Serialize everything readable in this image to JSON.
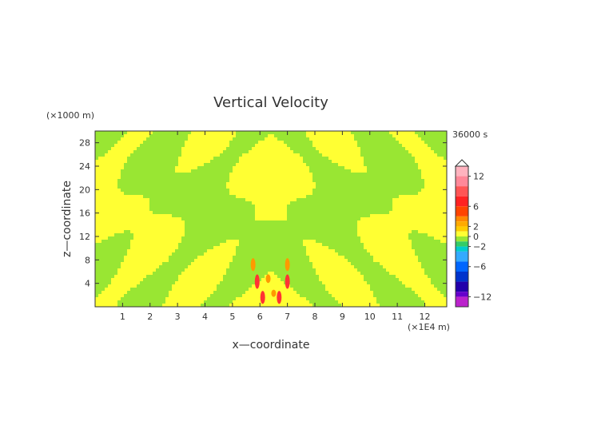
{
  "chart_data": {
    "type": "heatmap",
    "title": "Vertical Velocity",
    "xlabel": "x—coordinate",
    "ylabel": "z—coordinate",
    "x_unit": "(×1E4 m)",
    "y_unit": "(×1000 m)",
    "time_label": "36000 s",
    "x_range": [
      0,
      12.8
    ],
    "y_range": [
      0,
      30
    ],
    "x_ticks": [
      "1",
      "2",
      "3",
      "4",
      "5",
      "6",
      "7",
      "8",
      "9",
      "10",
      "11",
      "12"
    ],
    "y_ticks": [
      "4",
      "8",
      "12",
      "16",
      "20",
      "24",
      "28"
    ],
    "colorbar": {
      "labels": [
        "12",
        "6",
        "2",
        "0",
        "−2",
        "−6",
        "−12"
      ],
      "label_values": [
        12,
        6,
        2,
        0,
        -2,
        -6,
        -12
      ],
      "range": [
        -14,
        14
      ],
      "colors": {
        "yellow": "#ffff33",
        "green": "#99e633",
        "orange": "#ff9900",
        "red": "#ff3333",
        "pink": "#ff99aa"
      }
    },
    "dominant_values": "alternating bands of slight positive (yellow) and slight negative (green) vertical velocity, symmetric about x ≈ 6.4, with stronger orange/red cores near x ≈ 6–7, z < 8"
  }
}
